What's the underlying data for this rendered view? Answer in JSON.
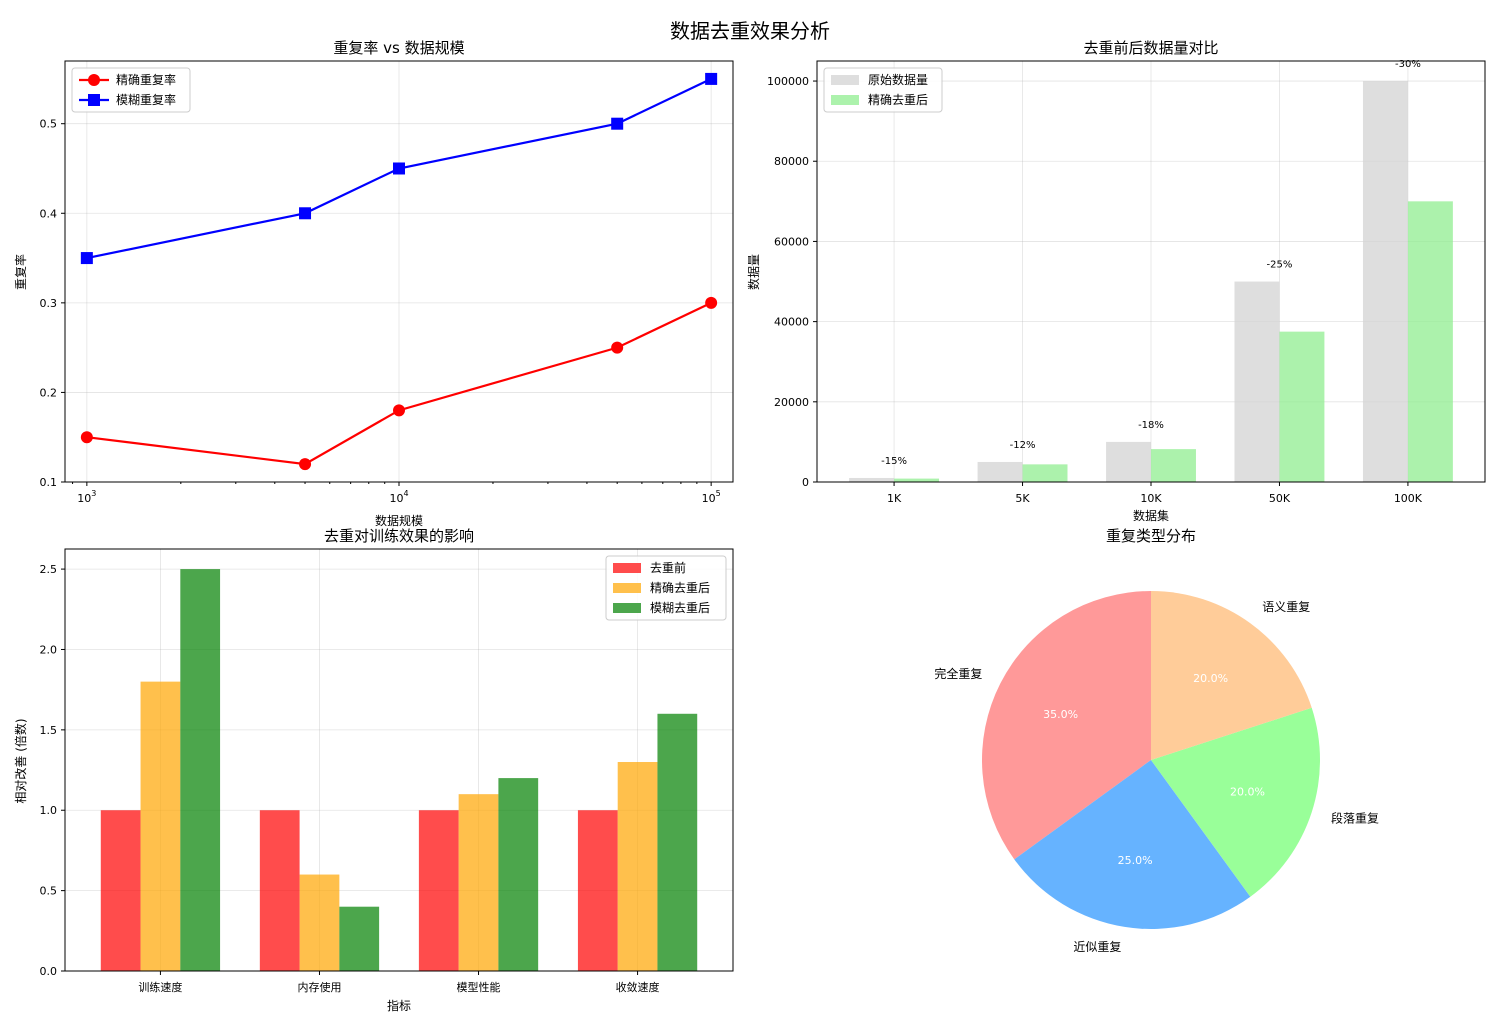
{
  "figure": {
    "title": "数据去重效果分析"
  },
  "chart_data": [
    {
      "type": "line",
      "title": "重复率 vs 数据规模",
      "xlabel": "数据规模",
      "ylabel": "重复率",
      "xscale": "log",
      "x": [
        1000,
        5000,
        10000,
        50000,
        100000
      ],
      "x_ticks": [
        1000,
        10000,
        100000
      ],
      "x_tick_labels": [
        {
          "base": "10",
          "exp": "3"
        },
        {
          "base": "10",
          "exp": "4"
        },
        {
          "base": "10",
          "exp": "5"
        }
      ],
      "ylim": [
        0.1,
        0.57
      ],
      "y_ticks": [
        0.1,
        0.2,
        0.3,
        0.4,
        0.5
      ],
      "y_tick_labels": [
        "0.1",
        "0.2",
        "0.3",
        "0.4",
        "0.5"
      ],
      "grid": true,
      "legend": "top-left",
      "series": [
        {
          "name": "精确重复率",
          "values": [
            0.15,
            0.12,
            0.18,
            0.25,
            0.3
          ],
          "color": "#ff0000",
          "marker": "circle"
        },
        {
          "name": "模糊重复率",
          "values": [
            0.35,
            0.4,
            0.45,
            0.5,
            0.55
          ],
          "color": "#0000ff",
          "marker": "square"
        }
      ]
    },
    {
      "type": "bar",
      "title": "去重前后数据量对比",
      "xlabel": "数据集",
      "ylabel": "数据量",
      "categories": [
        "1K",
        "5K",
        "10K",
        "50K",
        "100K"
      ],
      "ylim": [
        0,
        105000
      ],
      "y_ticks": [
        0,
        20000,
        40000,
        60000,
        80000,
        100000
      ],
      "y_tick_labels": [
        "0",
        "20000",
        "40000",
        "60000",
        "80000",
        "100000"
      ],
      "grid": true,
      "legend": "top-left",
      "series": [
        {
          "name": "原始数据量",
          "values": [
            1000,
            5000,
            10000,
            50000,
            100000
          ],
          "color": "#d3d3d3"
        },
        {
          "name": "精确去重后",
          "values": [
            850,
            4400,
            8200,
            37500,
            70000
          ],
          "color": "#90ee90"
        }
      ],
      "annotations": [
        "-15%",
        "-12%",
        "-18%",
        "-25%",
        "-30%"
      ]
    },
    {
      "type": "bar",
      "title": "去重对训练效果的影响",
      "xlabel": "指标",
      "ylabel": "相对改善 (倍数)",
      "categories": [
        "训练速度",
        "内存使用",
        "模型性能",
        "收敛速度"
      ],
      "ylim": [
        0,
        2.625
      ],
      "y_ticks": [
        0,
        0.5,
        1.0,
        1.5,
        2.0,
        2.5
      ],
      "y_tick_labels": [
        "0.0",
        "0.5",
        "1.0",
        "1.5",
        "2.0",
        "2.5"
      ],
      "grid": true,
      "legend": "top-right",
      "series": [
        {
          "name": "去重前",
          "values": [
            1.0,
            1.0,
            1.0,
            1.0
          ],
          "color": "#ff0000"
        },
        {
          "name": "精确去重后",
          "values": [
            1.8,
            0.6,
            1.1,
            1.3
          ],
          "color": "#ffa500"
        },
        {
          "name": "模糊去重后",
          "values": [
            2.5,
            0.4,
            1.2,
            1.6
          ],
          "color": "#008000"
        }
      ]
    },
    {
      "type": "pie",
      "title": "重复类型分布",
      "slices": [
        {
          "label": "完全重复",
          "value": 35,
          "pct": "35.0%",
          "color": "#ff9999"
        },
        {
          "label": "近似重复",
          "value": 25,
          "pct": "25.0%",
          "color": "#66b3ff"
        },
        {
          "label": "段落重复",
          "value": 20,
          "pct": "20.0%",
          "color": "#99ff99"
        },
        {
          "label": "语义重复",
          "value": 20,
          "pct": "20.0%",
          "color": "#ffcc99"
        }
      ]
    }
  ]
}
